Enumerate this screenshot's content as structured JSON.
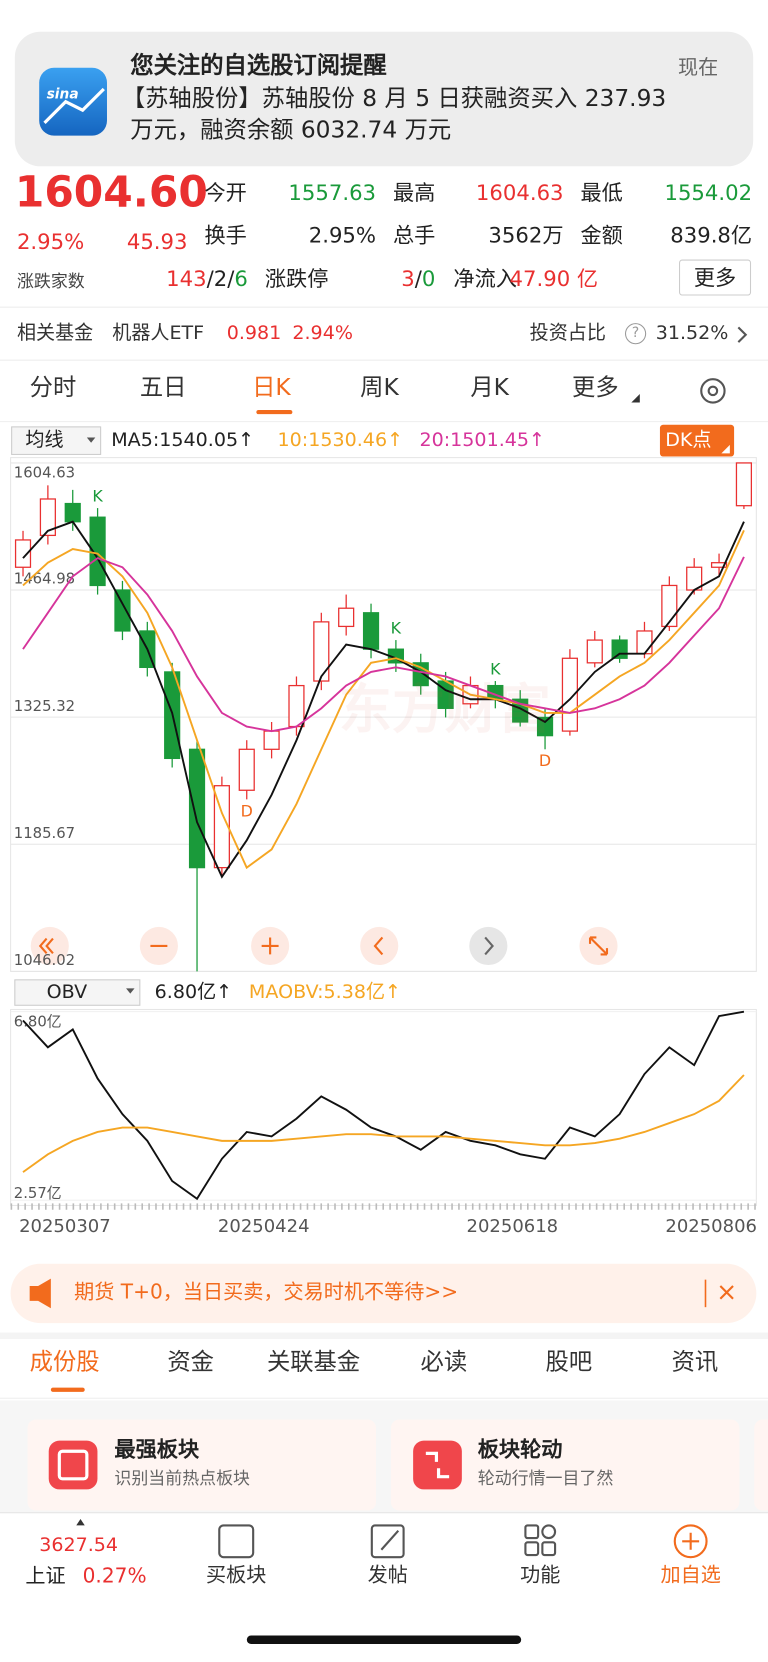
{
  "notification": {
    "title": "您关注的自选股订阅提醒",
    "time": "现在",
    "body_line1": "【苏轴股份】苏轴股份 8 月 5 日获融资买入 237.93",
    "body_line2": "万元，融资余额 6032.74 万元",
    "app_icon_label": "sina"
  },
  "quote": {
    "price": "1604.60",
    "change_pct": "2.95%",
    "change": "45.93",
    "open_label": "今开",
    "open": "1557.63",
    "high_label": "最高",
    "high": "1604.63",
    "low_label": "最低",
    "low": "1554.02",
    "turnover_label": "换手",
    "turnover": "2.95%",
    "volume_label": "总手",
    "volume": "3562万",
    "amount_label": "金额",
    "amount": "839.8亿",
    "breadth_label": "涨跌家数",
    "breadth_up": "143",
    "breadth_sep": "/",
    "breadth_flat": "2",
    "breadth_down": "6",
    "limit_label": "涨跌停",
    "limit_up": "3",
    "limit_down": "0",
    "inflow_label": "净流入",
    "inflow": "47.90 亿",
    "more": "更多"
  },
  "fund": {
    "label": "相关基金",
    "name": "机器人ETF",
    "price": "0.981",
    "pct": "2.94%",
    "ratio_label": "投资占比",
    "help": "?",
    "ratio": "31.52%"
  },
  "tabs": [
    "分时",
    "五日",
    "日K",
    "周K",
    "月K",
    "更多"
  ],
  "legend": {
    "selector": "均线",
    "ma5": "MA5:1540.05↑",
    "ma10": "10:1530.46↑",
    "ma20": "20:1501.45↑",
    "dk": "DK点"
  },
  "kline": {
    "type": "candlestick",
    "watermark": "东方财富",
    "ylim": [
      1046.02,
      1604.63
    ],
    "yticks": [
      {
        "value": 1604.63,
        "label": "1604.63"
      },
      {
        "value": 1464.98,
        "label": "1464.98"
      },
      {
        "value": 1325.32,
        "label": "1325.32"
      },
      {
        "value": 1185.67,
        "label": "1185.67"
      },
      {
        "value": 1046.02,
        "label": "1046.02"
      }
    ],
    "up_color": "#e93030",
    "down_color": "#1a9a3a",
    "categories": [
      "20250307",
      null,
      null,
      null,
      null,
      null,
      null,
      null,
      "20250424",
      null,
      null,
      null,
      null,
      null,
      null,
      null,
      null,
      null,
      "20250618",
      null,
      null,
      null,
      null,
      null,
      null,
      null,
      "20250806",
      null,
      null,
      null
    ],
    "open": [
      1490,
      1525,
      1560,
      1545,
      1465,
      1420,
      1375,
      1290,
      1160,
      1245,
      1290,
      1315,
      1365,
      1425,
      1440,
      1400,
      1385,
      1365,
      1340,
      1360,
      1345,
      1325,
      1310,
      1385,
      1410,
      1395,
      1425,
      1465,
      1490,
      1557.63
    ],
    "close": [
      1520,
      1565,
      1540,
      1470,
      1420,
      1380,
      1280,
      1160,
      1250,
      1290,
      1310,
      1360,
      1430,
      1445,
      1400,
      1385,
      1360,
      1335,
      1360,
      1345,
      1320,
      1305,
      1390,
      1410,
      1390,
      1420,
      1470,
      1490,
      1495,
      1604.6
    ],
    "high": [
      1530,
      1580,
      1575,
      1555,
      1475,
      1430,
      1385,
      1300,
      1260,
      1300,
      1320,
      1370,
      1440,
      1460,
      1450,
      1410,
      1395,
      1375,
      1370,
      1365,
      1355,
      1335,
      1400,
      1420,
      1415,
      1430,
      1480,
      1500,
      1505,
      1604.63
    ],
    "low": [
      1480,
      1515,
      1530,
      1460,
      1410,
      1370,
      1270,
      1046.02,
      1150,
      1235,
      1280,
      1305,
      1355,
      1415,
      1390,
      1375,
      1350,
      1325,
      1335,
      1335,
      1315,
      1290,
      1305,
      1380,
      1385,
      1390,
      1420,
      1460,
      1480,
      1554.02
    ],
    "ma_lines": [
      {
        "color": "#111111",
        "values": [
          1500,
          1530,
          1540,
          1500,
          1450,
          1400,
          1330,
          1210,
          1150,
          1190,
          1240,
          1300,
          1370,
          1405,
          1400,
          1390,
          1375,
          1355,
          1345,
          1345,
          1335,
          1320,
          1345,
          1375,
          1395,
          1395,
          1430,
          1465,
          1480,
          1540.05
        ]
      },
      {
        "color": "#f5a623",
        "values": [
          1470,
          1495,
          1510,
          1505,
          1480,
          1440,
          1380,
          1300,
          1220,
          1160,
          1180,
          1230,
          1290,
          1350,
          1385,
          1390,
          1380,
          1365,
          1350,
          1345,
          1340,
          1330,
          1330,
          1350,
          1370,
          1385,
          1410,
          1440,
          1470,
          1530.46
        ]
      },
      {
        "color": "#d6349b",
        "values": [
          1400,
          1440,
          1480,
          1500,
          1490,
          1460,
          1420,
          1370,
          1330,
          1315,
          1310,
          1315,
          1335,
          1360,
          1375,
          1380,
          1375,
          1370,
          1360,
          1350,
          1340,
          1335,
          1330,
          1335,
          1345,
          1360,
          1385,
          1415,
          1445,
          1501.45
        ]
      }
    ],
    "markers": [
      {
        "index": 3,
        "label": "K",
        "color": "#1a9a3a"
      },
      {
        "index": 9,
        "label": "D",
        "color": "#f26b1d"
      },
      {
        "index": 15,
        "label": "K",
        "color": "#1a9a3a"
      },
      {
        "index": 19,
        "label": "K",
        "color": "#1a9a3a"
      },
      {
        "index": 21,
        "label": "D",
        "color": "#f26b1d"
      }
    ]
  },
  "obv": {
    "selector": "OBV",
    "value_label": "6.80亿↑",
    "ma_label": "MAOBV:5.38亿↑",
    "ylim": [
      2.57,
      6.8
    ],
    "yticks": [
      {
        "value": 6.8,
        "label": "6.80亿"
      },
      {
        "value": 2.57,
        "label": "2.57亿"
      }
    ],
    "series": [
      {
        "color": "#111111",
        "values": [
          6.6,
          6.0,
          6.4,
          5.3,
          4.5,
          3.9,
          3.0,
          2.6,
          3.5,
          4.1,
          4.0,
          4.4,
          4.9,
          4.6,
          4.2,
          4.0,
          3.7,
          4.1,
          3.9,
          3.8,
          3.6,
          3.5,
          4.2,
          4.0,
          4.5,
          5.4,
          6.0,
          5.6,
          6.7,
          6.8
        ]
      },
      {
        "color": "#f5a623",
        "values": [
          3.2,
          3.6,
          3.9,
          4.1,
          4.2,
          4.2,
          4.1,
          4.0,
          3.9,
          3.9,
          3.9,
          3.95,
          4.0,
          4.05,
          4.05,
          4.0,
          4.0,
          4.0,
          3.95,
          3.9,
          3.85,
          3.8,
          3.8,
          3.85,
          3.95,
          4.1,
          4.3,
          4.5,
          4.8,
          5.38
        ]
      }
    ]
  },
  "ad": {
    "text": "期货 T+0，当日买卖，交易时机不等待>>"
  },
  "bottom_tabs": [
    "成份股",
    "资金",
    "关联基金",
    "必读",
    "股吧",
    "资讯"
  ],
  "cards": [
    {
      "title": "最强板块",
      "subtitle": "识别当前热点板块"
    },
    {
      "title": "板块轮动",
      "subtitle": "轮动行情一目了然"
    }
  ],
  "nav": {
    "index_value": "3627.54",
    "index_name": "上证",
    "index_pct": "0.27%",
    "items": [
      "买板块",
      "发帖",
      "功能",
      "加自选"
    ]
  }
}
